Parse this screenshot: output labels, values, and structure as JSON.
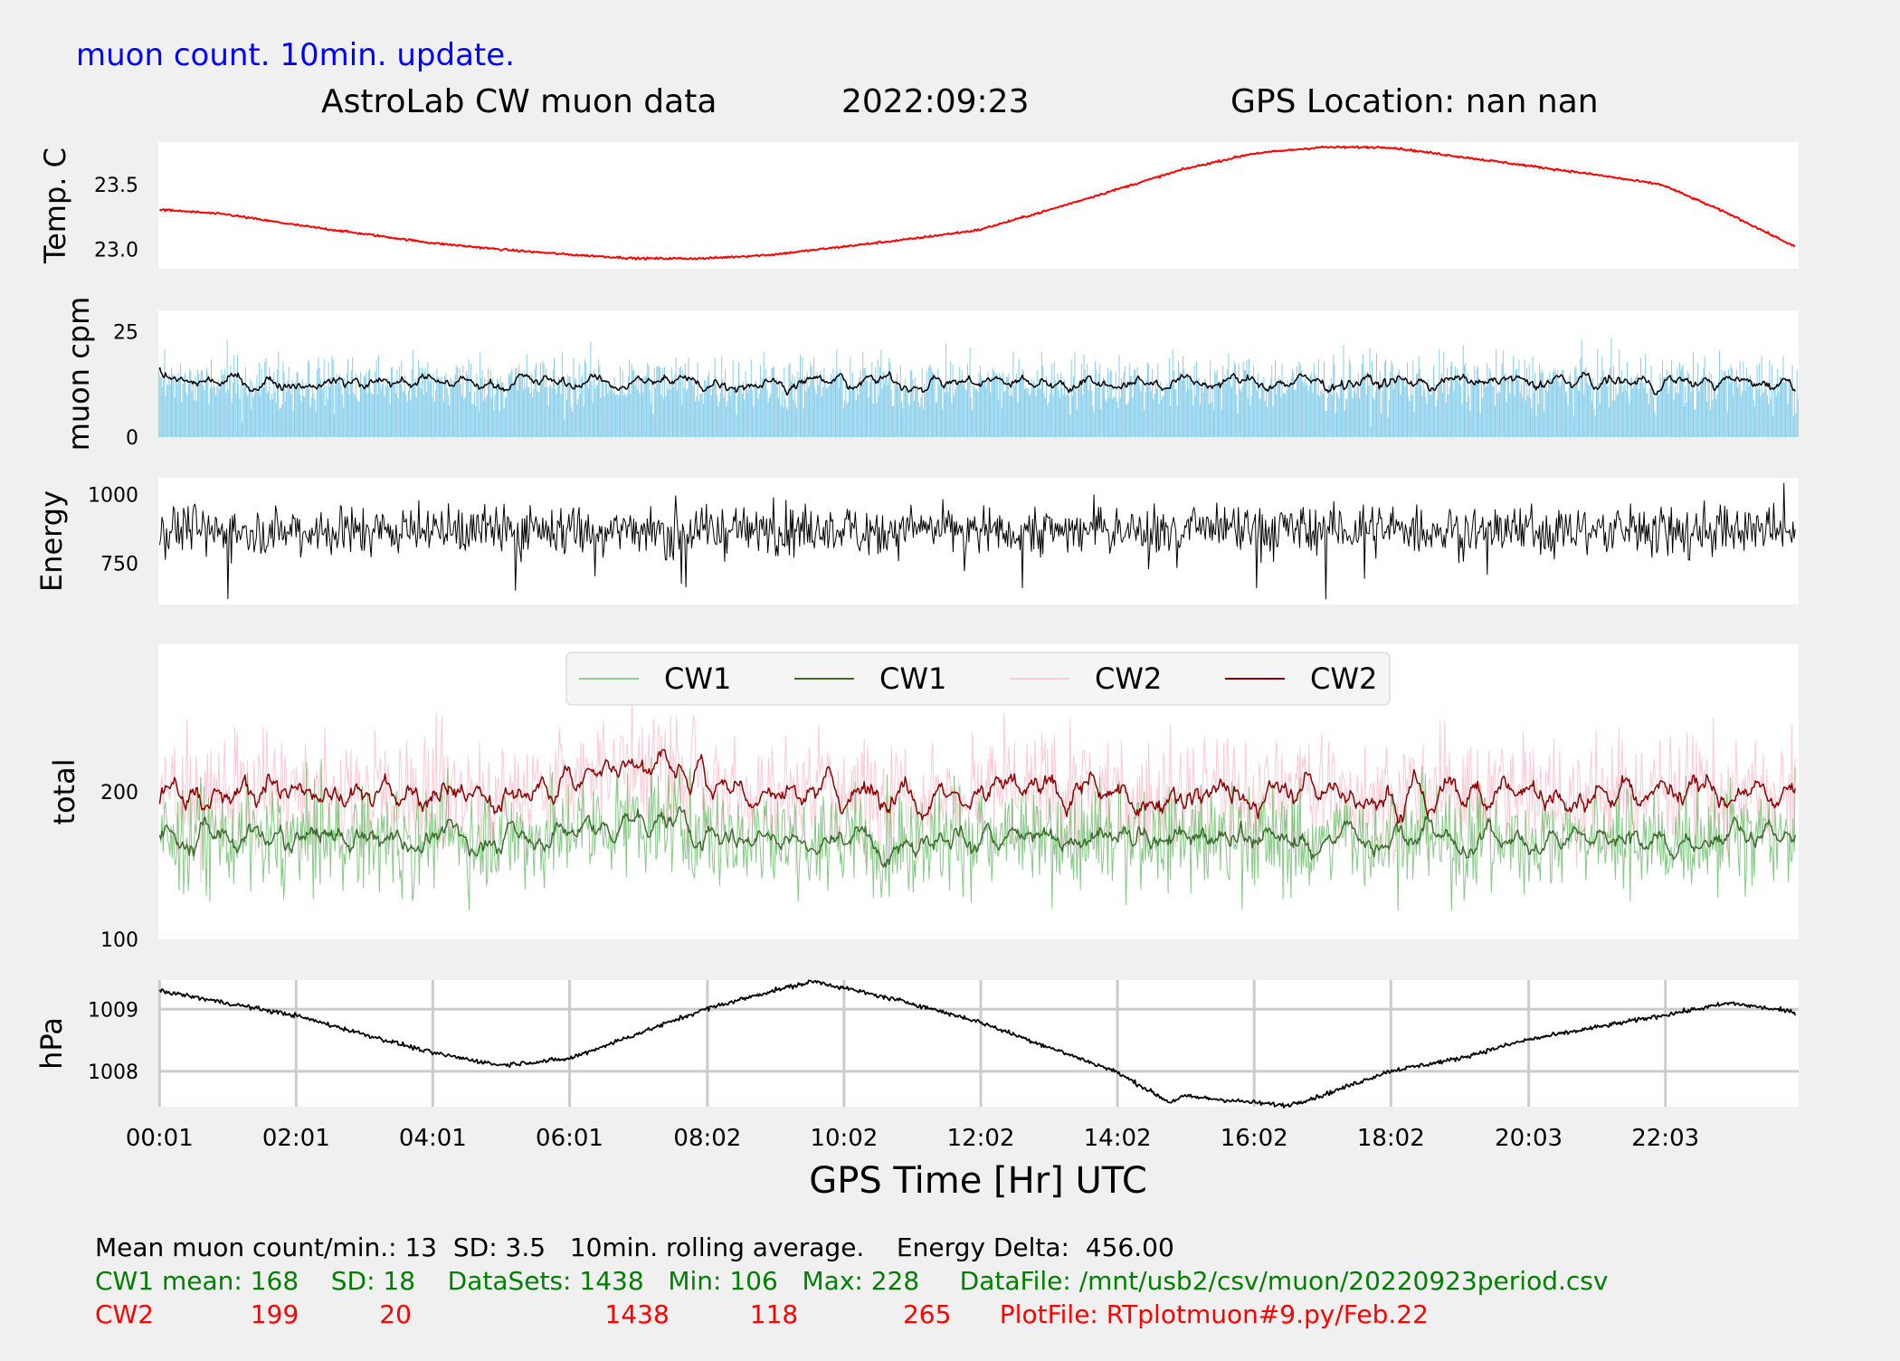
{
  "header": {
    "update_note": "muon count.  10min. update.",
    "title": "AstroLab CW muon data",
    "date": "2022:09:23",
    "gps_location": "GPS Location: nan   nan"
  },
  "colors": {
    "update_note": "#0000ff",
    "temperature": "#ff0000",
    "muon_bars": "#87ceeb",
    "cw1_raw": "#6fbf6f",
    "cw1_avg": "#3d6b2e",
    "cw2_raw": "#ffc0cb",
    "cw2_avg": "#8b0000",
    "footer_green": "#008000",
    "footer_red": "#ff0000"
  },
  "chart_data": [
    {
      "type": "line",
      "ylabel": "Temp. C",
      "ylim": [
        22.85,
        23.83
      ],
      "yticks": [
        "23.0",
        "23.5"
      ],
      "x_hours": [
        0.02,
        1,
        2,
        3,
        4,
        5,
        6,
        7,
        8,
        9,
        10,
        11,
        12,
        13,
        14,
        15,
        16,
        17,
        18,
        19,
        20,
        21,
        22,
        23,
        23.95
      ],
      "series": [
        {
          "values": [
            23.31,
            23.27,
            23.19,
            23.12,
            23.05,
            23.0,
            22.96,
            22.93,
            22.93,
            22.96,
            23.02,
            23.08,
            23.15,
            23.3,
            23.46,
            23.62,
            23.74,
            23.79,
            23.79,
            23.72,
            23.65,
            23.58,
            23.5,
            23.27,
            23.02
          ]
        }
      ]
    },
    {
      "type": "bar",
      "ylabel": "muon cpm",
      "ylim": [
        0,
        30
      ],
      "yticks": [
        "0",
        "25"
      ],
      "mean": 13,
      "sd": 3.5,
      "avg_window": "10min"
    },
    {
      "type": "line",
      "ylabel": "Energy",
      "ylim": [
        600,
        1060
      ],
      "yticks": [
        "750",
        "1000"
      ],
      "energy_delta": 456.0
    },
    {
      "type": "line",
      "ylabel": "total",
      "ylim": [
        100,
        300
      ],
      "yticks": [
        "100",
        "200"
      ],
      "legend": [
        "CW1",
        "CW1",
        "CW2",
        "CW2"
      ],
      "legend_position": "top-center",
      "series": [
        {
          "name": "CW1",
          "mean": 168,
          "sd": 18,
          "datasets": 1438,
          "min": 106,
          "max": 228
        },
        {
          "name": "CW2",
          "mean": 199,
          "sd": 20,
          "datasets": 1438,
          "min": 118,
          "max": 265
        }
      ]
    },
    {
      "type": "line",
      "ylabel": "hPa",
      "ylim": [
        1007.43,
        1009.47
      ],
      "yticks": [
        "1008",
        "1009"
      ],
      "grid": true,
      "x_hours": [
        0.02,
        1,
        2,
        3,
        4,
        5,
        6,
        7,
        8,
        9,
        9.6,
        10,
        11,
        12,
        13,
        14,
        14.8,
        15,
        16,
        16.5,
        17,
        18,
        19,
        20,
        21,
        22,
        23,
        23.95
      ],
      "series": [
        {
          "values": [
            1009.3,
            1009.1,
            1008.9,
            1008.6,
            1008.3,
            1008.1,
            1008.2,
            1008.6,
            1009.0,
            1009.3,
            1009.45,
            1009.35,
            1009.1,
            1008.8,
            1008.4,
            1008.0,
            1007.5,
            1007.6,
            1007.5,
            1007.45,
            1007.6,
            1008.0,
            1008.2,
            1008.5,
            1008.7,
            1008.9,
            1009.1,
            1008.95
          ]
        }
      ]
    }
  ],
  "x_axis": {
    "label": "GPS Time  [Hr] UTC",
    "ticks": [
      "00:01",
      "02:01",
      "04:01",
      "06:01",
      "08:02",
      "10:02",
      "12:02",
      "14:02",
      "16:02",
      "18:02",
      "20:03",
      "22:03"
    ]
  },
  "footer": {
    "line1": "Mean muon count/min.: 13  SD: 3.5   10min. rolling average.    Energy Delta:  456.00",
    "line2": "CW1 mean: 168    SD: 18    DataSets: 1438   Min: 106   Max: 228     DataFile: /mnt/usb2/csv/muon/20220923period.csv",
    "line3": "CW2            199          20                        1438          118             265      PlotFile: RTplotmuon#9.py/Feb.22"
  }
}
